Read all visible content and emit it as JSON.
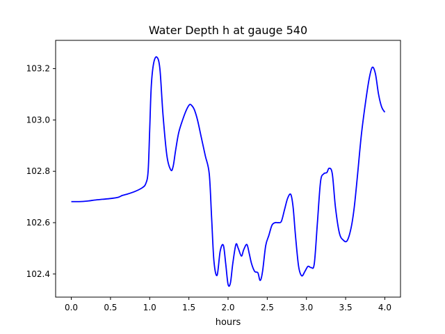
{
  "chart_data": {
    "type": "line",
    "title": "Water Depth h at gauge 540",
    "xlabel": "hours",
    "ylabel": "",
    "xlim": [
      -0.2,
      4.2
    ],
    "ylim": [
      102.31,
      103.31
    ],
    "xticks": [
      0.0,
      0.5,
      1.0,
      1.5,
      2.0,
      2.5,
      3.0,
      3.5,
      4.0
    ],
    "xtick_labels": [
      "0.0",
      "0.5",
      "1.0",
      "1.5",
      "2.0",
      "2.5",
      "3.0",
      "3.5",
      "4.0"
    ],
    "yticks": [
      102.4,
      102.6,
      102.8,
      103.0,
      103.2
    ],
    "ytick_labels": [
      "102.4",
      "102.6",
      "102.8",
      "103.0",
      "103.2"
    ],
    "grid": false,
    "series": [
      {
        "name": "h",
        "color": "#0000ff",
        "x": [
          0.0,
          0.1,
          0.2,
          0.3,
          0.4,
          0.5,
          0.6,
          0.65,
          0.7,
          0.8,
          0.9,
          0.95,
          0.98,
          1.0,
          1.02,
          1.05,
          1.09,
          1.13,
          1.17,
          1.22,
          1.27,
          1.3,
          1.33,
          1.37,
          1.42,
          1.47,
          1.51,
          1.54,
          1.57,
          1.61,
          1.66,
          1.71,
          1.76,
          1.79,
          1.82,
          1.86,
          1.9,
          1.94,
          1.97,
          2.0,
          2.03,
          2.06,
          2.1,
          2.13,
          2.17,
          2.2,
          2.24,
          2.27,
          2.3,
          2.34,
          2.38,
          2.41,
          2.44,
          2.48,
          2.52,
          2.56,
          2.6,
          2.64,
          2.68,
          2.72,
          2.76,
          2.8,
          2.83,
          2.86,
          2.9,
          2.94,
          2.98,
          3.02,
          3.06,
          3.1,
          3.14,
          3.18,
          3.22,
          3.26,
          3.29,
          3.33,
          3.37,
          3.42,
          3.47,
          3.52,
          3.57,
          3.61,
          3.65,
          3.7,
          3.75,
          3.8,
          3.84,
          3.88,
          3.92,
          3.96,
          4.0
        ],
        "y": [
          102.682,
          102.682,
          102.684,
          102.688,
          102.691,
          102.694,
          102.699,
          102.706,
          102.71,
          102.72,
          102.735,
          102.752,
          102.8,
          102.96,
          103.13,
          103.22,
          103.245,
          103.2,
          103.02,
          102.86,
          102.805,
          102.82,
          102.88,
          102.95,
          103.0,
          103.04,
          103.06,
          103.055,
          103.04,
          103.0,
          102.93,
          102.86,
          102.79,
          102.62,
          102.45,
          102.395,
          102.49,
          102.512,
          102.44,
          102.36,
          102.365,
          102.44,
          102.515,
          102.5,
          102.47,
          102.495,
          102.515,
          102.48,
          102.44,
          102.41,
          102.405,
          102.375,
          102.41,
          102.51,
          102.55,
          102.59,
          102.6,
          102.6,
          102.605,
          102.65,
          102.695,
          102.71,
          102.66,
          102.55,
          102.43,
          102.393,
          102.41,
          102.43,
          102.425,
          102.44,
          102.6,
          102.76,
          102.79,
          102.795,
          102.812,
          102.79,
          102.66,
          102.56,
          102.532,
          102.53,
          102.58,
          102.66,
          102.78,
          102.94,
          103.06,
          103.16,
          103.205,
          103.18,
          103.1,
          103.05,
          103.03
        ]
      }
    ]
  }
}
